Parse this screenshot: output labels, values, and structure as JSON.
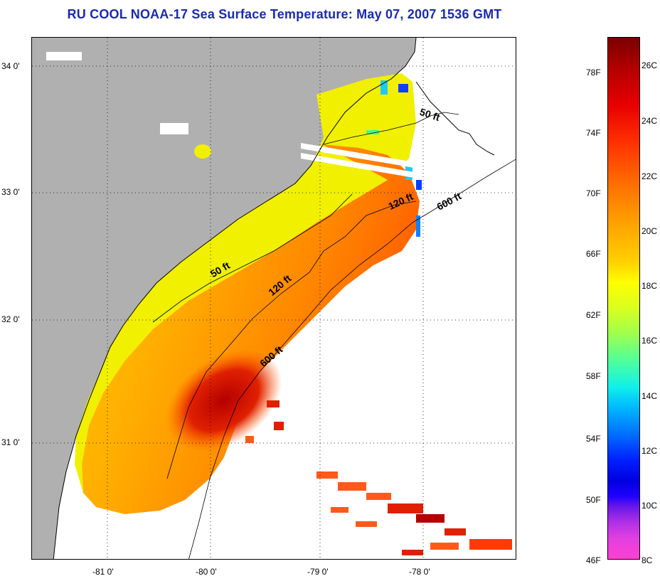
{
  "title": "RU COOL  NOAA-17  Sea Surface Temperature:  May 07, 2007 1536 GMT",
  "latitude_labels": [
    "34 0'",
    "33 0'",
    "32 0'",
    "31 0'"
  ],
  "longitude_labels": [
    "-81 0'",
    "-80 0'",
    "-79 0'",
    "-78 0'"
  ],
  "contour_labels": [
    "50 ft",
    "120 ft",
    "600 ft",
    "50 ft",
    "120 ft",
    "600 ft"
  ],
  "colorbar": {
    "fahrenheit": [
      "78F",
      "74F",
      "70F",
      "66F",
      "62F",
      "58F",
      "54F",
      "50F",
      "46F"
    ],
    "celsius": [
      "26C",
      "24C",
      "22C",
      "20C",
      "18C",
      "16C",
      "14C",
      "12C",
      "10C",
      "8C"
    ]
  },
  "colors": {
    "land": "#b0b0b0",
    "title": "#1a2ab0"
  }
}
